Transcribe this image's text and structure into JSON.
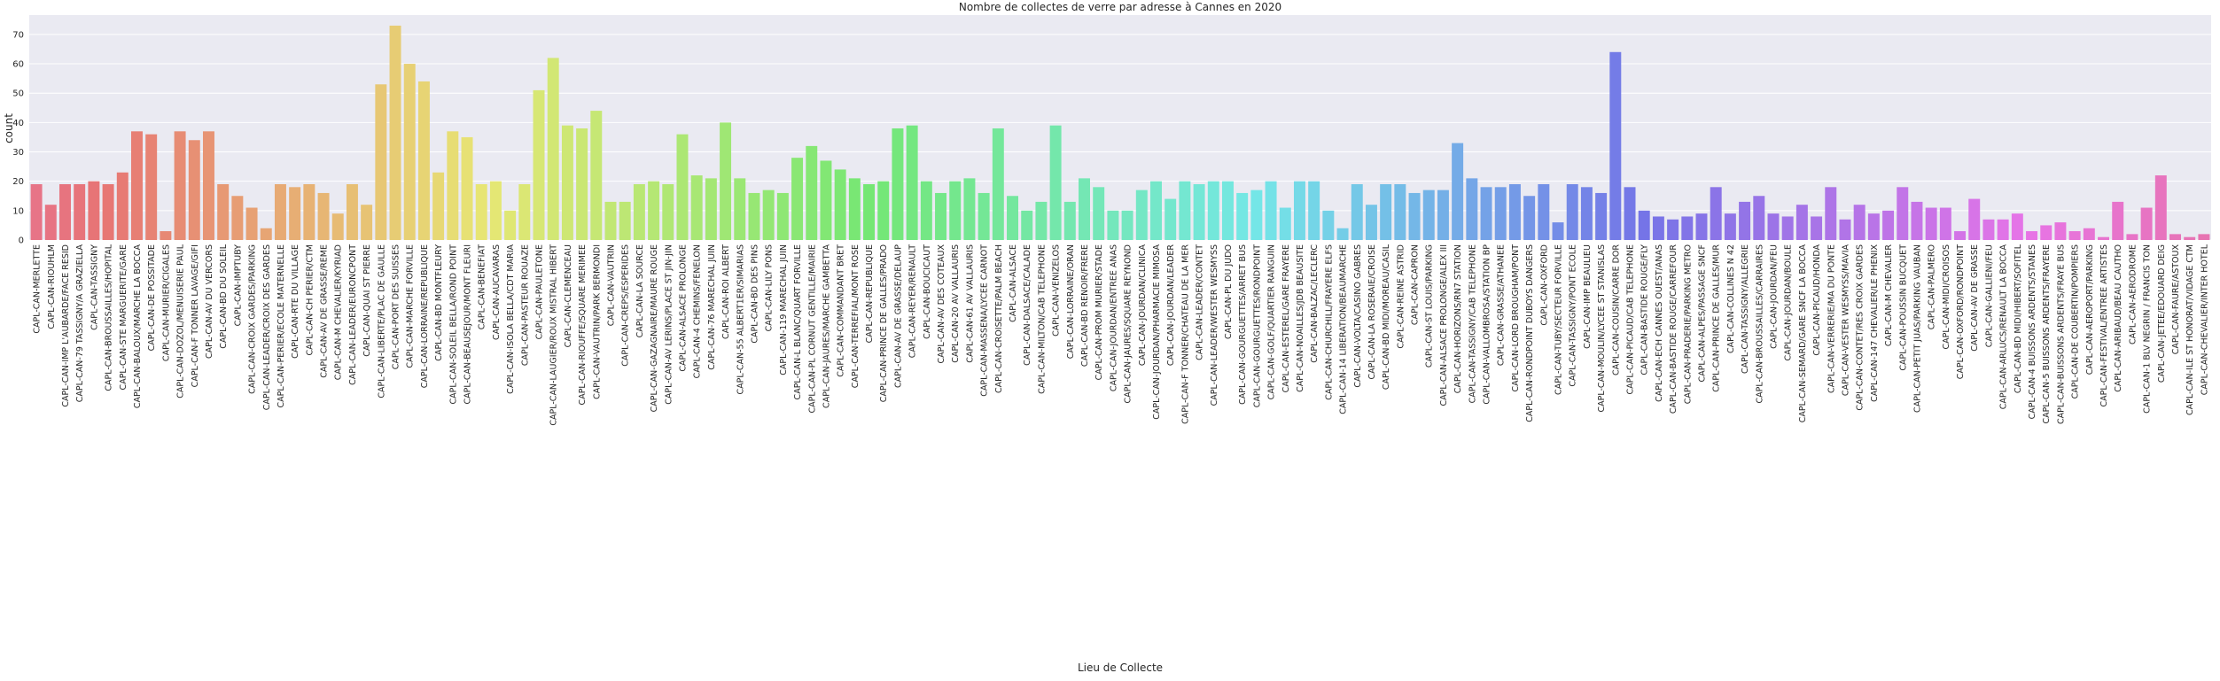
{
  "chart_data": {
    "type": "bar",
    "title": "Nombre de collectes de verre par adresse à Cannes en 2020",
    "xlabel": "Lieu de Collecte",
    "ylabel": "count",
    "palette": "husl",
    "grid": true,
    "ylim": [
      0,
      76.6
    ],
    "yticks": [
      0,
      10,
      20,
      30,
      40,
      50,
      60,
      70
    ],
    "categories": [
      "CAPL-CAN-MERLETTE",
      "CAPL-CAN-RIOUHLM",
      "CAPL-CAN-IMP L'AUBARDE/FACE RESID",
      "CAPL-CAN-79 TASSIGNY/A GRAZIELLA",
      "CAPL-CAN-TASSIGNY",
      "CAPL-CAN-BROUSSAILLES/HOPITAL",
      "CAPL-CAN-STE MARGUERITE/GARE",
      "CAPL-CAN-BALOUX/MARCHE LA BOCCA",
      "CAPL-CAN-DE POSSITADE",
      "CAPL-CAN-MURIER/CIGALES",
      "CAPL-CAN-DOZOL/MENUISERIE PAUL",
      "CAPL-CAN-F TONNER LAVAGE/GIFI",
      "CAPL-CAN-AV DU VERCORS",
      "CAPL-CAN-BD DU SOLEIL",
      "CAPL-CAN-IMPTUBY",
      "CAPL-CAN-CROIX GARDES/PARKING",
      "CAPL-CAN-LEADER/CROIX DES GARDES",
      "CAPL-CAN-PERIER/ECOLE MATERNELLE",
      "CAPL-CAN-RTE DU VILLAGE",
      "CAPL-CAN-CH PERIER/CTM",
      "CAPL-CAN-AV DE GRASSE/REME",
      "CAPL-CAN-M CHEVALIER/KYRIAD",
      "CAPL-CAN-LEADER/EURONCPONT",
      "CAPL-CAN-QUAI ST PIERRE",
      "CAPL-CAN-LIBERTE/PLAC DE GAULLE",
      "CAPL-CAN-PORT DES SUISSES",
      "CAPL-CAN-MARCHE FORVILLE",
      "CAPL-CAN-LORRAINE/REPUBLIQUE",
      "CAPL-CAN-BD MONTFLEURY",
      "CAPL-CAN-SOLEIL BELLA/ROND POINT",
      "CAPL-CAN-BEAUSEJOUR/MONT FLEURI",
      "CAPL-CAN-BENEFIAT",
      "CAPL-CAN-AUCAVARAS",
      "CAPL-CAN-ISOLA BELLA/CDT MARIA",
      "CAPL-CAN-PASTEUR ROUAZE",
      "CAPL-CAN-PAULETONE",
      "CAPL-CAN-LAUGIER/ROUX MISTRAL HIBERT",
      "CAPL-CAN-CLEMENCEAU",
      "CAPL-CAN-RIOUFFE/SQUARE MERIMEE",
      "CAPL-CAN-VAUTRIN/PARK BERMONDI",
      "CAPL-CAN-VAUTRIN",
      "CAPL-CAN-CREPS/ESPERIDES",
      "CAPL-CAN-LA SOURCE",
      "CAPL-CAN-GAZAGNAIRE/MAURE ROUGE",
      "CAPL-CAN-AV LERINS/PLACE ST JIN-JIN",
      "CAPL-CAN-ALSACE PROLONGE",
      "CAPL-CAN-4 CHEMINS/FENELON",
      "CAPL-CAN-76 MARECHAL JUIN",
      "CAPL-CAN-ROI ALBERT",
      "CAPL-CAN-55 ALBERT1ER/SIMARIAS",
      "CAPL-CAN-BD DES PINS",
      "CAPL-CAN-LILY PONS",
      "CAPL-CAN-119 MARECHAL JUIN",
      "CAPL-CAN-L BLANC/QUART FORVILLE",
      "CAPL-CAN-PL CORNUT GENTILLE/MAIRIE",
      "CAPL-CAN-JAURES/MARCHE GAMBETTA",
      "CAPL-CAN-COMMANDANT BRET",
      "CAPL-CAN-TERREFIAL/MONT ROSE",
      "CAPL-CAN-REPUBLIQUE",
      "CAPL-CAN-PRINCE DE GALLES/PRADO",
      "CAPL-CAN-AV DE GRASSE/DELAUP",
      "CAPL-CAN-REYER/RENAULT",
      "CAPL-CAN-BOUCICAUT",
      "CAPL-CAN-AV DES COTEAUX",
      "CAPL-CAN-20 AV VALLAURIS",
      "CAPL-CAN-61 AV VALLAURIS",
      "CAPL-CAN-MASSENA/LYCEE CARNOT",
      "CAPL-CAN-CROISETTE/PALM BEACH",
      "CAPL-CAN-ALSACE",
      "CAPL-CAN-DALSACE/CALADE",
      "CAPL-CAN-MILTON/CAB TELEPHONE",
      "CAPL-CAN-VENIZELOS",
      "CAPL-CAN-LORRAINE/ORAN",
      "CAPL-CAN-BD RENOIR/FRERE",
      "CAPL-CAN-PROM MURIER/STADE",
      "CAPL-CAN-JOURDAN/ENTREE ANAS",
      "CAPL-CAN-JAURES/SQUARE REYNOND",
      "CAPL-CAN-JOURDAN/CLINICA",
      "CAPL-CAN-JOURDAN/PHARMACIE MIMOSA",
      "CAPL-CAN-JOURDAN/LEADER",
      "CAPL-CAN-F TONNER/CHATEAU DE LA MER",
      "CAPL-CAN-LEADER/CONTET",
      "CAPL-CAN-LEADER/WESTER WESMYSS",
      "CAPL-CAN-PL DU JUDO",
      "CAPL-CAN-GOURGUETTES/ARRET BUS",
      "CAPL-CAN-GOURGUETTES/RONDPOINT",
      "CAPL-CAN-GOLF/QUARTIER RANGUIN",
      "CAPL-CAN-ESTEREL/GARE FRAYERE",
      "CAPL-CAN-NOAILLES/JDB BEAUSITE",
      "CAPL-CAN-BALZAC/LECLERC",
      "CAPL-CAN-CHURCHILL/FRAYERE ELFS",
      "CAPL-CAN-14 LIBERATION/BEAUMARCHE",
      "CAPL-CAN-VOLTA/CASINO GABRES",
      "CAPL-CAN-LA ROSERAIE/CROISE",
      "CAPL-CAN-BD MIDI/MOREAU/CASIL",
      "CAPL-CAN-REINE ASTRID",
      "CAPL-CAN-CAPRON",
      "CAPL-CAN-ST LOUIS/PARKING",
      "CAPL-CAN-ALSACE PROLONGE/ALEX III",
      "CAPL-CAN-HORIZONS/RN7 STATION",
      "CAPL-CAN-TASSIGNY/CAB TELEPHONE",
      "CAPL-CAN-VALLOMBROSA/STATION BP",
      "CAPL-CAN-GRASSE/ATHANEE",
      "CAPL-CAN-LORD BROUGHAM/PONT",
      "CAPL-CAN-RONDPOINT DUBOYS DANGERS",
      "CAPL-CAN-OXFORD",
      "CAPL-CAN-TUBY/SECTEUR FORVILLE",
      "CAPL-CAN-TASSIGNY/PONT ECOLE",
      "CAPL-CAN-IMP BEAULIEU",
      "CAPL-CAN-MOULIN/LYCEE ST STANISLAS",
      "CAPL-CAN-COUSIN/CARRE DOR",
      "CAPL-CAN-PICAUD/CAB TELEPHONE",
      "CAPL-CAN-BASTIDE ROUGE/FLY",
      "CAPL-CAN-ECH CANNES OUEST/ANAS",
      "CAPL-CAN-BASTIDE ROUGE/CARREFOUR",
      "CAPL-CAN-PRADERIE/PARKING METRO",
      "CAPL-CAN-ALPES/PASSAGE SNCF",
      "CAPL-CAN-PRINCE DE GALLES/MUR",
      "CAPL-CAN-COLLINES N 42",
      "CAPL-CAN-TASSIGNY/ALLEGRIE",
      "CAPL-CAN-BROUSSAILLES/CARRAIRES",
      "CAPL-CAN-JOURDAN/FEU",
      "CAPL-CAN-JOURDAN/BOULE",
      "CAPL-CAN-SEMARD/GARE SNCF LA BOCCA",
      "CAPL-CAN-PICAUD/HONDA",
      "CAPL-CAN-VERRERIE/MA DU PONTE",
      "CAPL-CAN-VESTER WESMYSS/MAVIA",
      "CAPL-CAN-CONTET/RES CROIX GARDES",
      "CAPL-CAN-147 CHEVALIER/LE PHENIX",
      "CAPL-CAN-M CHEVALIER",
      "CAPL-CAN-POUSSIN BUCQUET",
      "CAPL-CAN-PETIT JUAS/PARKING VAUBAN",
      "CAPL-CAN-PALMERO",
      "CAPL-CAN-MIDI/CROISOS",
      "CAPL-CAN-OXFORD/RONDPOINT",
      "CAPL-CAN-AV DE GRASSE",
      "CAPL-CAN-GALLIENI/FEU",
      "CAPL-CAN-ARLUCS/RENAULT LA BOCCA",
      "CAPL-CAN-BD MIDI/HIBERT/SOFITEL",
      "CAPL-CAN-4 BUISSONS ARDENTS/STANES",
      "CAPL-CAN-5 BUISSONS ARDENTS/FRAYERE",
      "CAPL-CAN-BUISSONS ARDENTS/FRAYE BUS",
      "CAPL-CAN-DE COUBERTIN/POMPIERS",
      "CAPL-CAN-AEROPORT/PARKING",
      "CAPL-CAN-FESTIVAL/ENTREE ARTISTES",
      "CAPL-CAN-ARIBAUD/BEAU CAUTHO",
      "CAPL-CAN-AERODROME",
      "CAPL-CAN-1 BLV NEGRIN / FRANCIS TON",
      "CAPL-CAN-JETEE/EDOUARD DEIG",
      "CAPL-CAN-FAURE/ASTOUX",
      "CAPL-CAN-ILE ST HONORAT/VIDAGE CTM",
      "CAPL-CAN-CHEVALIER/INTER HOTEL"
    ],
    "values": [
      19,
      12,
      19,
      19,
      20,
      19,
      23,
      37,
      36,
      3,
      37,
      34,
      37,
      19,
      15,
      11,
      4,
      19,
      18,
      19,
      16,
      9,
      19,
      12,
      53,
      73,
      60,
      54,
      23,
      37,
      35,
      19,
      20,
      10,
      19,
      51,
      62,
      39,
      38,
      44,
      13,
      13,
      19,
      20,
      19,
      36,
      22,
      21,
      40,
      21,
      16,
      17,
      16,
      28,
      32,
      27,
      24,
      21,
      19,
      20,
      38,
      39,
      20,
      16,
      20,
      21,
      16,
      38,
      15,
      10,
      13,
      39,
      13,
      21,
      18,
      10,
      10,
      17,
      20,
      14,
      20,
      19,
      20,
      20,
      16,
      17,
      20,
      11,
      20,
      20,
      10,
      4,
      19,
      12,
      19,
      19,
      16,
      17,
      17,
      33,
      21,
      18,
      18,
      19,
      15,
      19,
      6,
      19,
      18,
      16,
      64,
      18,
      10,
      8,
      7,
      8,
      9,
      18,
      9,
      13,
      15,
      9,
      8,
      12,
      8,
      18,
      7,
      12,
      9,
      10,
      18,
      13,
      11,
      11,
      3,
      14,
      7,
      7,
      9,
      3,
      5,
      6,
      3,
      4,
      1,
      13,
      2,
      11,
      22,
      2,
      1,
      2
    ]
  }
}
